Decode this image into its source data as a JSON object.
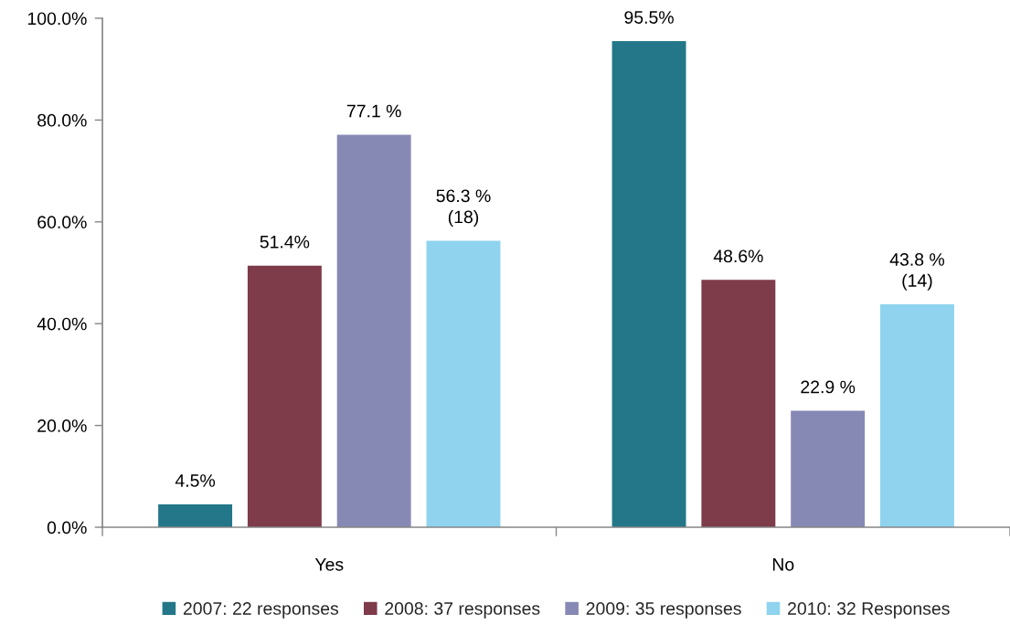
{
  "chart_data": {
    "type": "bar",
    "categories": [
      "Yes",
      "No"
    ],
    "series": [
      {
        "name": "2007: 22 responses",
        "color": "#237789",
        "values": [
          4.5,
          95.5
        ],
        "value_labels": [
          "4.5%",
          "95.5%"
        ]
      },
      {
        "name": "2008: 37 responses",
        "color": "#7e3b4a",
        "values": [
          51.4,
          48.6
        ],
        "value_labels": [
          "51.4%",
          "48.6%"
        ]
      },
      {
        "name": "2009: 35 responses",
        "color": "#8789b5",
        "values": [
          77.1,
          22.9
        ],
        "value_labels": [
          "77.1 %",
          "22.9 %"
        ]
      },
      {
        "name": "2010: 32 Responses",
        "color": "#8fd3ef",
        "values": [
          56.3,
          43.8
        ],
        "value_labels": [
          "56.3 %\n(18)",
          "43.8 %\n(14)"
        ]
      }
    ],
    "ylim": [
      0,
      100
    ],
    "yticks": [
      {
        "value": 0,
        "label": "0.0%"
      },
      {
        "value": 20,
        "label": "20.0%"
      },
      {
        "value": 40,
        "label": "40.0%"
      },
      {
        "value": 60,
        "label": "60.0%"
      },
      {
        "value": 80,
        "label": "80.0%"
      },
      {
        "value": 100,
        "label": "100.0%"
      }
    ],
    "grid": false,
    "legend": "bottom"
  }
}
